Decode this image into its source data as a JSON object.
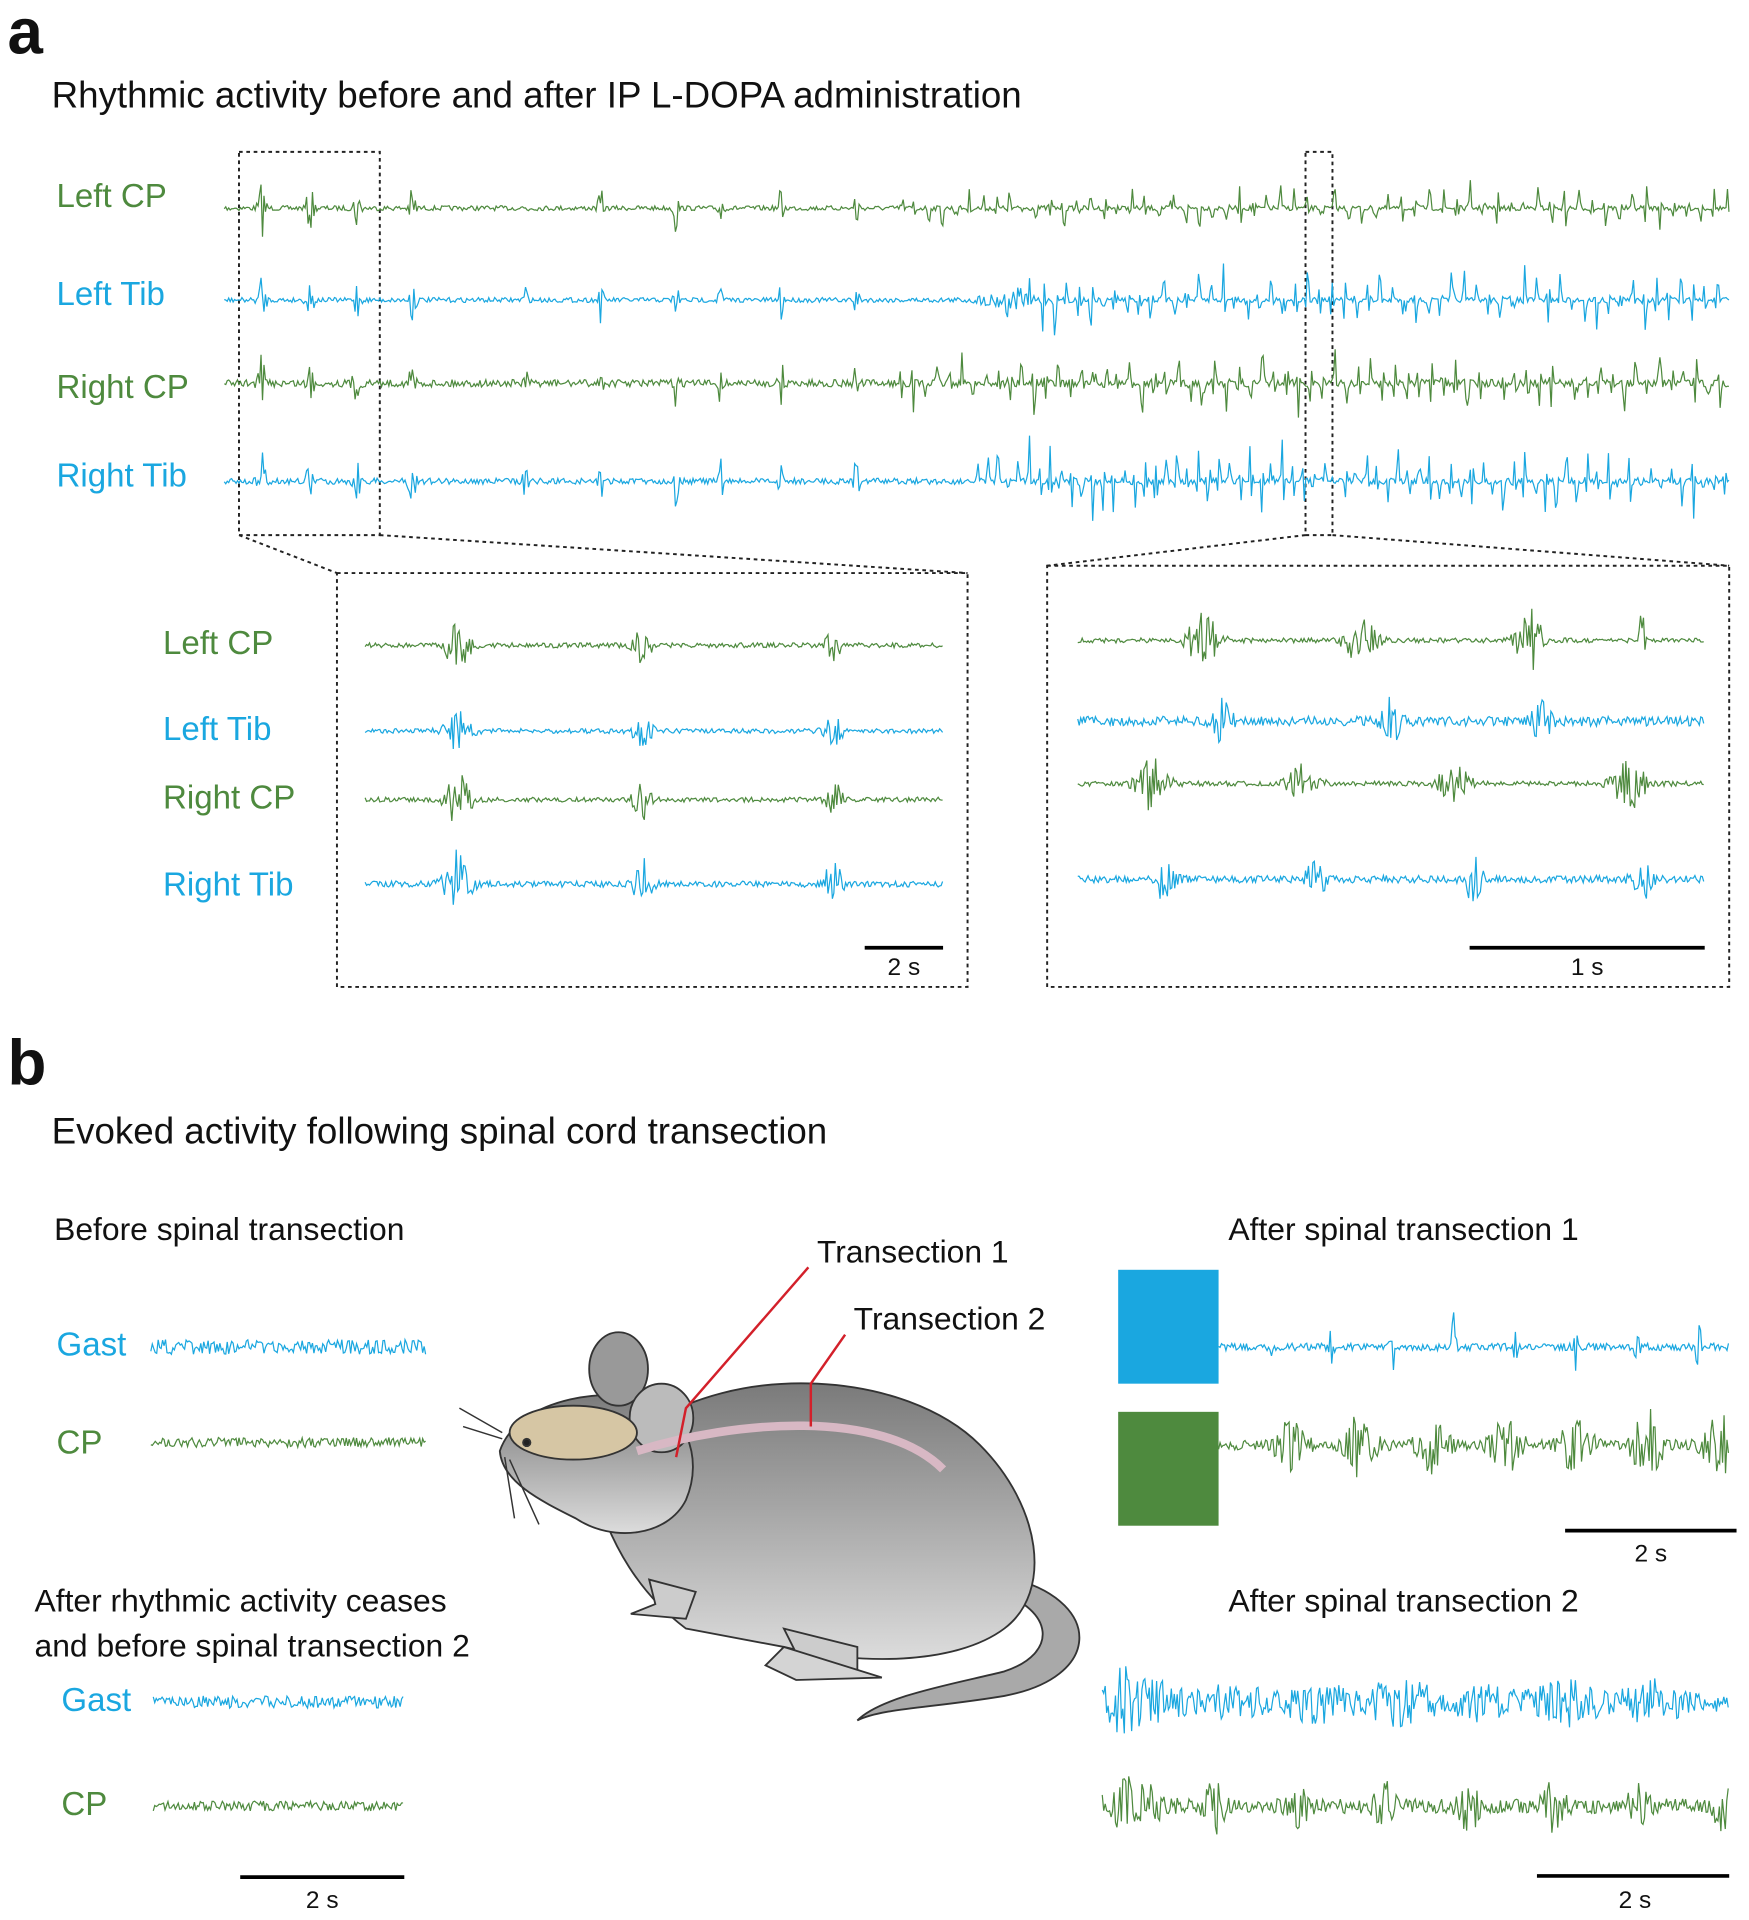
{
  "panel_a": {
    "label": "a",
    "title": "Rhythmic activity before and after IP L-DOPA administration",
    "channels": [
      "Left CP",
      "Left Tib",
      "Right CP",
      "Right Tib"
    ],
    "inset_left": {
      "channels": [
        "Left CP",
        "Left Tib",
        "Right CP",
        "Right Tib"
      ],
      "scale_bar": "2 s"
    },
    "inset_right": {
      "scale_bar": "1 s"
    }
  },
  "panel_b": {
    "label": "b",
    "title": "Evoked activity following spinal cord transection",
    "before": {
      "title": "Before spinal transection",
      "channels": [
        "Gast",
        "CP"
      ]
    },
    "after_cease": {
      "title_lines": [
        "After rhythmic activity ceases",
        "and before spinal transection 2"
      ],
      "channels": [
        "Gast",
        "CP"
      ],
      "scale_bar": "2 s"
    },
    "transections": [
      "Transection 1",
      "Transection 2"
    ],
    "after_1": {
      "title": "After spinal transection  1",
      "scale_bar": "2 s"
    },
    "after_2": {
      "title": "After spinal transection  2",
      "scale_bar": "2 s"
    }
  }
}
